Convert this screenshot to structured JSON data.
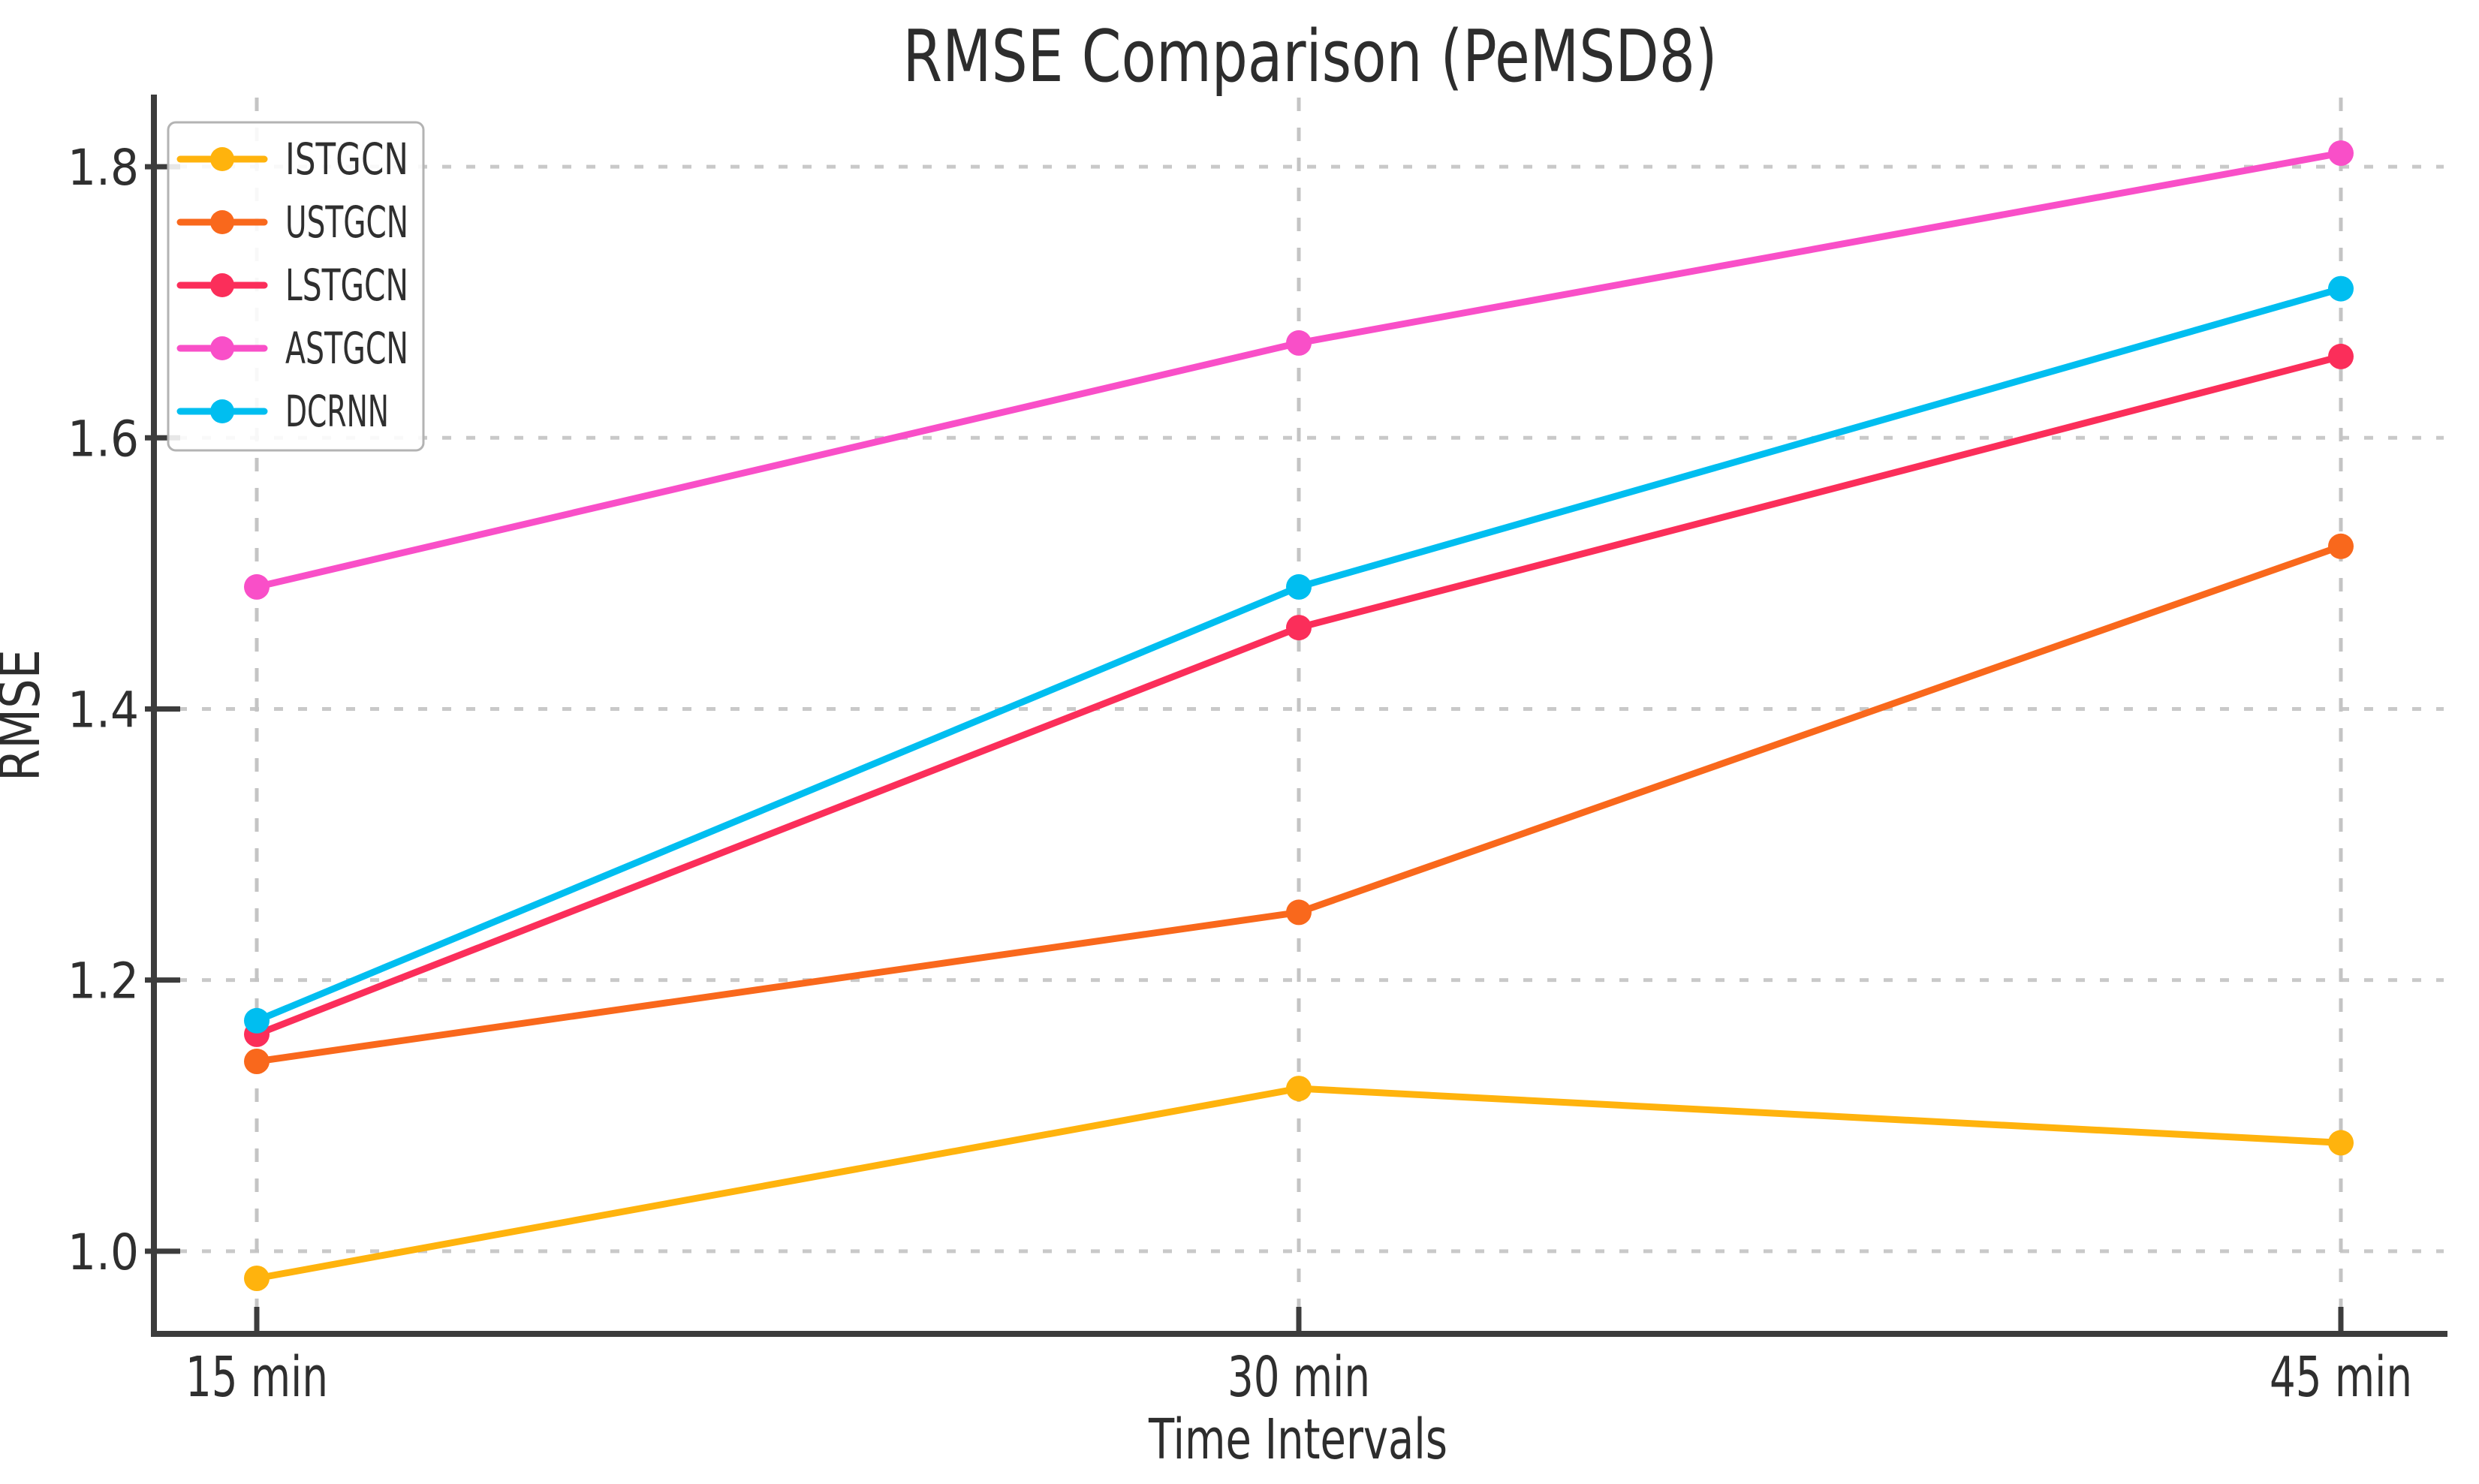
{
  "chart_data": {
    "type": "line",
    "title": "RMSE Comparison (PeMSD8)",
    "xlabel": "Time Intervals",
    "ylabel": "RMSE",
    "categories": [
      "15 min",
      "30 min",
      "45 min"
    ],
    "series": [
      {
        "name": "ISTGCN",
        "color": "#FFB30D",
        "values": [
          0.98,
          1.12,
          1.08
        ]
      },
      {
        "name": "USTGCN",
        "color": "#F9681C",
        "values": [
          1.14,
          1.25,
          1.52
        ]
      },
      {
        "name": "LSTGCN",
        "color": "#FB2E5A",
        "values": [
          1.16,
          1.46,
          1.66
        ]
      },
      {
        "name": "ASTGCN",
        "color": "#F94FC8",
        "values": [
          1.49,
          1.67,
          1.81
        ]
      },
      {
        "name": "DCRNN",
        "color": "#00BEF0",
        "values": [
          1.17,
          1.49,
          1.71
        ]
      }
    ],
    "y_ticks": [
      "1.0",
      "1.2",
      "1.4",
      "1.6",
      "1.8"
    ],
    "y_tick_values": [
      1.0,
      1.2,
      1.4,
      1.6,
      1.8
    ],
    "ylim": [
      0.939,
      1.851
    ],
    "grid": true,
    "legend_position": "upper left",
    "colors": {
      "grid": "#c9c9c9",
      "spine": "#3c3c3c",
      "text": "#2d2d2d",
      "background": "#ffffff"
    }
  }
}
